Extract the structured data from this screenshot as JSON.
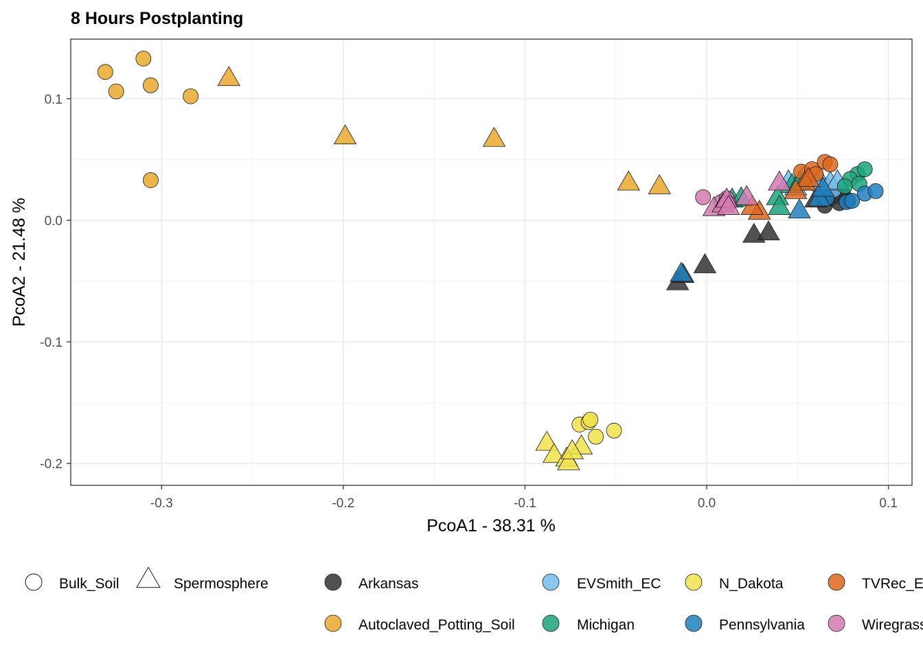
{
  "chart_data": {
    "type": "scatter",
    "title": "8 Hours Postplanting",
    "xlabel": "PcoA1 - 38.31 %",
    "ylabel": "PcoA2 - 21.48 %",
    "xlim": [
      -0.35,
      0.113
    ],
    "ylim": [
      -0.218,
      0.149
    ],
    "x_ticks": [
      -0.3,
      -0.2,
      -0.1,
      0.0,
      0.1
    ],
    "x_tick_labels": [
      "-0.3",
      "-0.2",
      "-0.1",
      "0.0",
      "0.1"
    ],
    "y_ticks": [
      -0.2,
      -0.1,
      0.0,
      0.1
    ],
    "y_tick_labels": [
      "-0.2",
      "-0.1",
      "0.0",
      "0.1"
    ],
    "grid": true,
    "legend_position": "bottom",
    "shape_legend": [
      {
        "name": "Bulk_Soil",
        "shape": "circle"
      },
      {
        "name": "Spermosphere",
        "shape": "triangle"
      }
    ],
    "series": [
      {
        "name": "Arkansas",
        "color": "#333333",
        "bulk_soil": [
          [
            0.065,
            0.012
          ],
          [
            0.068,
            0.018
          ],
          [
            0.072,
            0.02
          ],
          [
            0.075,
            0.022
          ],
          [
            0.078,
            0.016
          ],
          [
            0.073,
            0.014
          ]
        ],
        "spermosphere": [
          [
            -0.016,
            -0.052
          ],
          [
            -0.001,
            -0.038
          ],
          [
            0.026,
            -0.013
          ],
          [
            0.034,
            -0.011
          ],
          [
            -0.013,
            -0.046
          ],
          [
            0.06,
            0.016
          ]
        ]
      },
      {
        "name": "Autoclaved_Potting_Soil",
        "color": "#E9A92E",
        "bulk_soil": [
          [
            -0.331,
            0.122
          ],
          [
            -0.325,
            0.106
          ],
          [
            -0.31,
            0.133
          ],
          [
            -0.306,
            0.111
          ],
          [
            -0.284,
            0.102
          ],
          [
            -0.306,
            0.033
          ]
        ],
        "spermosphere": [
          [
            -0.263,
            0.116
          ],
          [
            -0.199,
            0.068
          ],
          [
            -0.117,
            0.066
          ],
          [
            -0.043,
            0.03
          ],
          [
            -0.026,
            0.027
          ]
        ]
      },
      {
        "name": "EVSmith_EC",
        "color": "#73BCEC",
        "bulk_soil": [
          [
            0.055,
            0.032
          ],
          [
            0.06,
            0.03
          ],
          [
            0.066,
            0.028
          ],
          [
            0.07,
            0.025
          ]
        ],
        "spermosphere": [
          [
            0.045,
            0.031
          ],
          [
            0.053,
            0.034
          ],
          [
            0.062,
            0.033
          ],
          [
            0.068,
            0.03
          ],
          [
            0.072,
            0.031
          ],
          [
            0.049,
            0.026
          ]
        ]
      },
      {
        "name": "Michigan",
        "color": "#1BA47E",
        "bulk_soil": [
          [
            0.083,
            0.038
          ],
          [
            0.087,
            0.042
          ],
          [
            0.079,
            0.034
          ],
          [
            0.084,
            0.03
          ],
          [
            0.076,
            0.028
          ]
        ],
        "spermosphere": [
          [
            0.014,
            0.016
          ],
          [
            0.019,
            0.017
          ],
          [
            0.039,
            0.018
          ],
          [
            0.04,
            0.01
          ],
          [
            0.047,
            0.028
          ],
          [
            0.051,
            0.03
          ]
        ]
      },
      {
        "name": "N_Dakota",
        "color": "#EFE24A",
        "bulk_soil": [
          [
            -0.07,
            -0.168
          ],
          [
            -0.065,
            -0.166
          ],
          [
            -0.064,
            -0.164
          ],
          [
            -0.061,
            -0.178
          ],
          [
            -0.051,
            -0.173
          ]
        ],
        "spermosphere": [
          [
            -0.088,
            -0.184
          ],
          [
            -0.084,
            -0.194
          ],
          [
            -0.077,
            -0.197
          ],
          [
            -0.076,
            -0.2
          ],
          [
            -0.069,
            -0.187
          ],
          [
            -0.074,
            -0.191
          ]
        ]
      },
      {
        "name": "Pennsylvania",
        "color": "#1F7FBD",
        "bulk_soil": [
          [
            0.066,
            0.018
          ],
          [
            0.077,
            0.015
          ],
          [
            0.087,
            0.022
          ],
          [
            0.093,
            0.024
          ],
          [
            0.08,
            0.016
          ]
        ],
        "spermosphere": [
          [
            -0.014,
            -0.045
          ],
          [
            0.051,
            0.007
          ],
          [
            0.062,
            0.017
          ],
          [
            0.064,
            0.025
          ]
        ]
      },
      {
        "name": "TVRec_EC",
        "color": "#DC661C",
        "bulk_soil": [
          [
            0.052,
            0.04
          ],
          [
            0.058,
            0.042
          ],
          [
            0.065,
            0.048
          ],
          [
            0.068,
            0.046
          ],
          [
            0.06,
            0.038
          ]
        ],
        "spermosphere": [
          [
            0.029,
            0.006
          ],
          [
            0.025,
            0.01
          ],
          [
            0.054,
            0.03
          ],
          [
            0.056,
            0.033
          ],
          [
            0.049,
            0.023
          ]
        ]
      },
      {
        "name": "Wiregrass_EC",
        "color": "#D47AB0",
        "bulk_soil": [
          [
            -0.002,
            0.019
          ],
          [
            0.008,
            0.015
          ],
          [
            0.011,
            0.018
          ],
          [
            0.012,
            0.014
          ]
        ],
        "spermosphere": [
          [
            0.004,
            0.009
          ],
          [
            0.009,
            0.012
          ],
          [
            0.011,
            0.016
          ],
          [
            0.012,
            0.01
          ],
          [
            0.022,
            0.018
          ],
          [
            0.04,
            0.03
          ]
        ]
      }
    ]
  }
}
